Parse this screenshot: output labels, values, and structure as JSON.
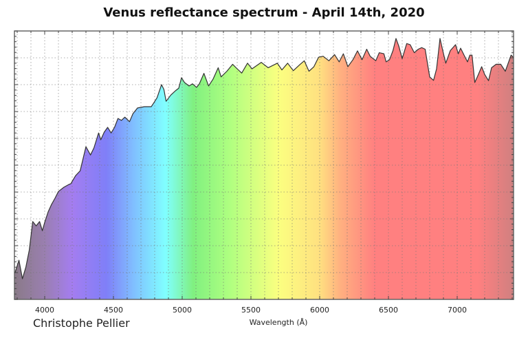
{
  "chart_data": {
    "type": "area",
    "title": "Venus reflectance spectrum - April 14th, 2020",
    "xlabel": "Wavelength (Å)",
    "ylabel": "",
    "xlim": [
      3780,
      7410
    ],
    "ylim": [
      0,
      1
    ],
    "x_ticks": [
      4000,
      4500,
      5000,
      5500,
      6000,
      6500,
      7000
    ],
    "x_tick_labels": [
      "4000",
      "4500",
      "5000",
      "5500",
      "6000",
      "6500",
      "7000"
    ],
    "y_tick_labels_shown": false,
    "grid": true,
    "legend": "none",
    "line_color": "#333333",
    "fill_gradient": [
      {
        "wavelength": 3780,
        "color": "#8a7a88"
      },
      {
        "wavelength": 4000,
        "color": "#9a7fb0"
      },
      {
        "wavelength": 4200,
        "color": "#a47df0"
      },
      {
        "wavelength": 4450,
        "color": "#7f7ff8"
      },
      {
        "wavelength": 4650,
        "color": "#80c0ff"
      },
      {
        "wavelength": 4880,
        "color": "#80ffff"
      },
      {
        "wavelength": 5080,
        "color": "#80f080"
      },
      {
        "wavelength": 5350,
        "color": "#b0ff80"
      },
      {
        "wavelength": 5700,
        "color": "#fbff80"
      },
      {
        "wavelength": 6000,
        "color": "#ffe080"
      },
      {
        "wavelength": 6150,
        "color": "#ffb080"
      },
      {
        "wavelength": 6400,
        "color": "#ff8080"
      },
      {
        "wavelength": 7150,
        "color": "#ff8080"
      },
      {
        "wavelength": 7410,
        "color": "#d08080"
      }
    ],
    "x": [
      3783,
      3813,
      3838,
      3863,
      3888,
      3913,
      3938,
      3963,
      3983,
      4000,
      4025,
      4050,
      4075,
      4100,
      4140,
      4175,
      4190,
      4225,
      4258,
      4300,
      4333,
      4358,
      4392,
      4408,
      4433,
      4458,
      4483,
      4508,
      4533,
      4558,
      4583,
      4617,
      4642,
      4675,
      4725,
      4775,
      4792,
      4817,
      4850,
      4867,
      4883,
      4917,
      4950,
      4975,
      4995,
      5017,
      5050,
      5075,
      5105,
      5125,
      5158,
      5192,
      5225,
      5262,
      5283,
      5325,
      5367,
      5400,
      5433,
      5475,
      5508,
      5575,
      5625,
      5692,
      5725,
      5767,
      5808,
      5858,
      5888,
      5922,
      5958,
      5992,
      6025,
      6067,
      6108,
      6142,
      6172,
      6205,
      6242,
      6275,
      6308,
      6342,
      6367,
      6408,
      6433,
      6467,
      6483,
      6508,
      6533,
      6555,
      6575,
      6600,
      6633,
      6658,
      6688,
      6717,
      6742,
      6767,
      6800,
      6828,
      6850,
      6875,
      6895,
      6917,
      6950,
      6988,
      7008,
      7025,
      7050,
      7075,
      7092,
      7108,
      7128,
      7150,
      7178,
      7200,
      7228,
      7250,
      7283,
      7317,
      7350,
      7392,
      7408
    ],
    "y": [
      0.098,
      0.146,
      0.077,
      0.12,
      0.184,
      0.29,
      0.274,
      0.29,
      0.256,
      0.287,
      0.326,
      0.354,
      0.377,
      0.402,
      0.418,
      0.428,
      0.431,
      0.461,
      0.479,
      0.569,
      0.538,
      0.564,
      0.62,
      0.595,
      0.623,
      0.641,
      0.62,
      0.641,
      0.674,
      0.667,
      0.679,
      0.662,
      0.692,
      0.713,
      0.718,
      0.718,
      0.731,
      0.751,
      0.8,
      0.782,
      0.738,
      0.761,
      0.777,
      0.787,
      0.826,
      0.808,
      0.795,
      0.803,
      0.79,
      0.803,
      0.842,
      0.795,
      0.821,
      0.863,
      0.829,
      0.85,
      0.876,
      0.859,
      0.843,
      0.88,
      0.859,
      0.883,
      0.863,
      0.88,
      0.855,
      0.88,
      0.852,
      0.876,
      0.889,
      0.85,
      0.867,
      0.902,
      0.906,
      0.889,
      0.912,
      0.885,
      0.915,
      0.867,
      0.893,
      0.926,
      0.893,
      0.932,
      0.906,
      0.889,
      0.919,
      0.915,
      0.885,
      0.893,
      0.927,
      0.972,
      0.944,
      0.897,
      0.953,
      0.949,
      0.919,
      0.932,
      0.938,
      0.932,
      0.829,
      0.816,
      0.859,
      0.972,
      0.927,
      0.88,
      0.927,
      0.949,
      0.915,
      0.936,
      0.91,
      0.885,
      0.91,
      0.91,
      0.808,
      0.833,
      0.867,
      0.838,
      0.815,
      0.863,
      0.876,
      0.876,
      0.85,
      0.91,
      0.902
    ]
  },
  "credit": "Christophe Pellier"
}
